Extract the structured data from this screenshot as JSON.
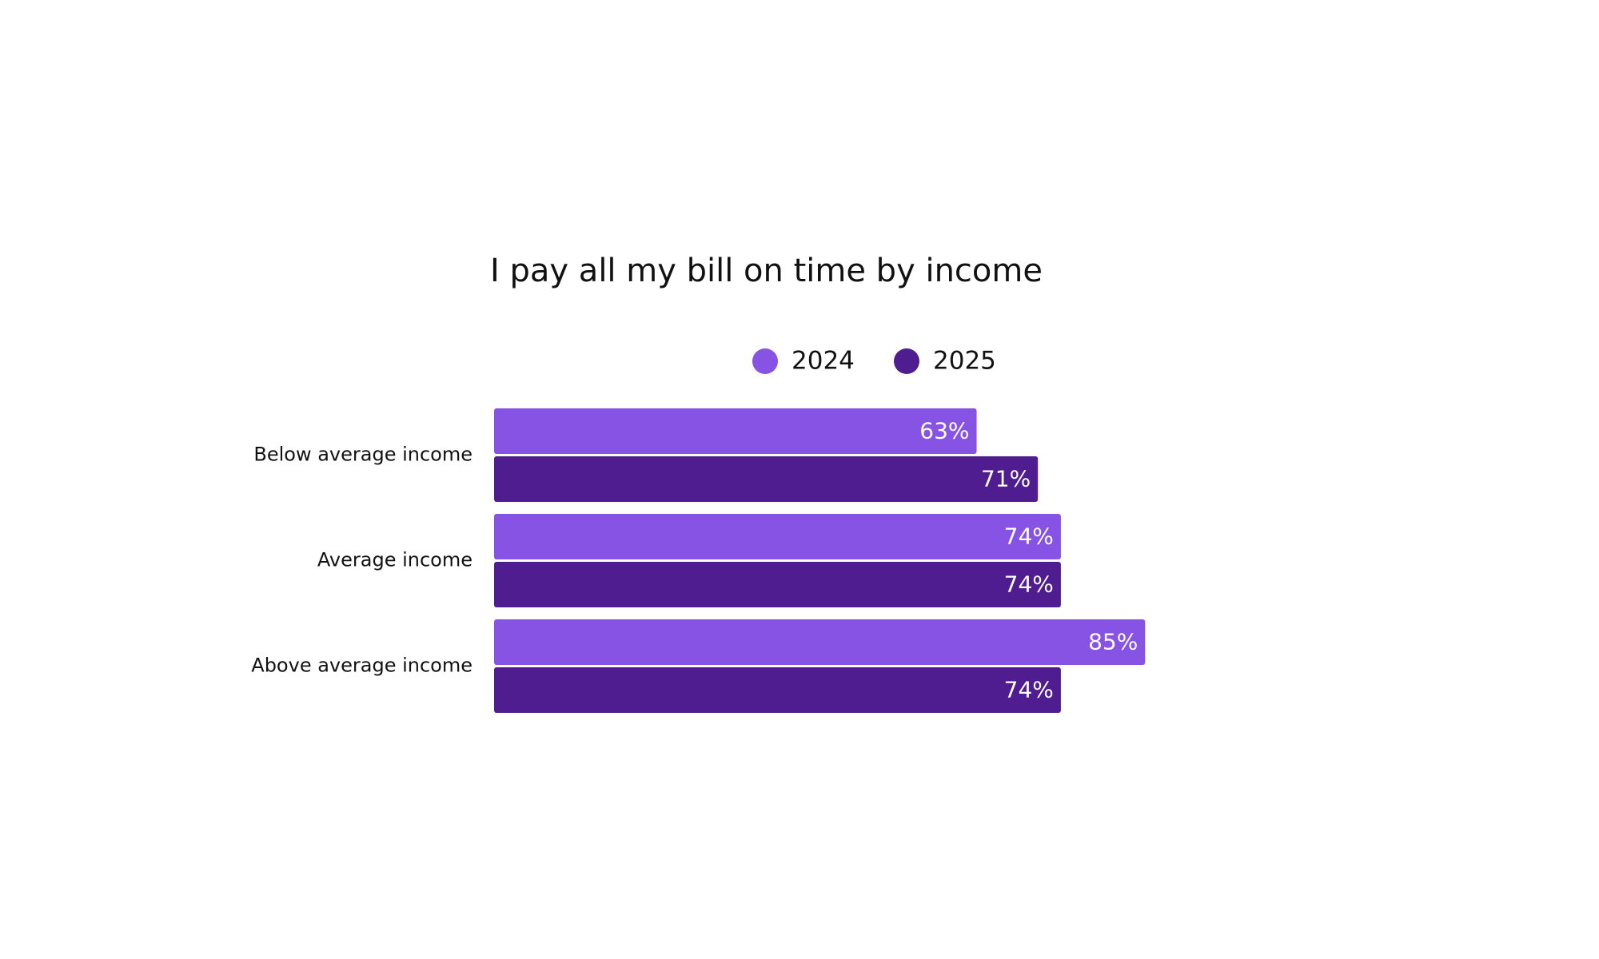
{
  "chart_data": {
    "type": "hbar",
    "title": "I pay all my bill on time by income",
    "categories": [
      "Below average income",
      "Average income",
      "Above average income"
    ],
    "series": [
      {
        "name": "2024",
        "color": "#8653e5",
        "values": [
          63,
          74,
          85
        ],
        "value_labels": [
          "63%",
          "74%",
          "85%"
        ]
      },
      {
        "name": "2025",
        "color": "#4f1d8f",
        "values": [
          71,
          74,
          74
        ],
        "value_labels": [
          "71%",
          "74%",
          "74%"
        ]
      }
    ],
    "legend": "top"
  }
}
